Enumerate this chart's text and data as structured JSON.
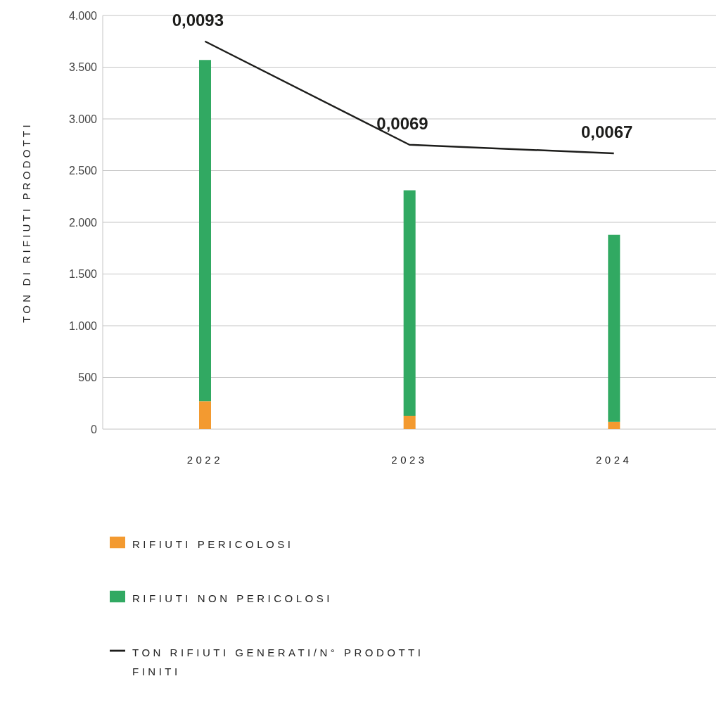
{
  "chart_data": {
    "type": "bar",
    "stacked": true,
    "ylabel": "TON DI RIFIUTI PRODOTTI",
    "categories": [
      "2022",
      "2023",
      "2024"
    ],
    "series": [
      {
        "name": "RIFIUTI PERICOLOSI",
        "color": "#f39a30",
        "values": [
          270,
          130,
          70
        ]
      },
      {
        "name": "RIFIUTI NON PERICOLOSI",
        "color": "#31a962",
        "values": [
          3300,
          2180,
          1810
        ]
      },
      {
        "name": "TON RIFIUTI GENERATI/N° PRODOTTI FINITI",
        "type": "line",
        "axis": "y2",
        "color": "#1d1d1b",
        "values": [
          0.0093,
          0.0069,
          0.0067
        ],
        "value_labels": [
          "0,0093",
          "0,0069",
          "0,0067"
        ],
        "marker": "none",
        "line_style": "solid"
      }
    ],
    "ylim": [
      0,
      4000
    ],
    "yticks": [
      {
        "value": 0,
        "label": "0"
      },
      {
        "value": 500,
        "label": "500"
      },
      {
        "value": 1000,
        "label": "1.000"
      },
      {
        "value": 1500,
        "label": "1.500"
      },
      {
        "value": 2000,
        "label": "2.000"
      },
      {
        "value": 2500,
        "label": "2.500"
      },
      {
        "value": 3000,
        "label": "3.000"
      },
      {
        "value": 3500,
        "label": "3.500"
      },
      {
        "value": 4000,
        "label": "4.000"
      }
    ],
    "y2lim": [
      0.0003,
      0.0099
    ],
    "grid": "y",
    "legend": "bottom"
  }
}
